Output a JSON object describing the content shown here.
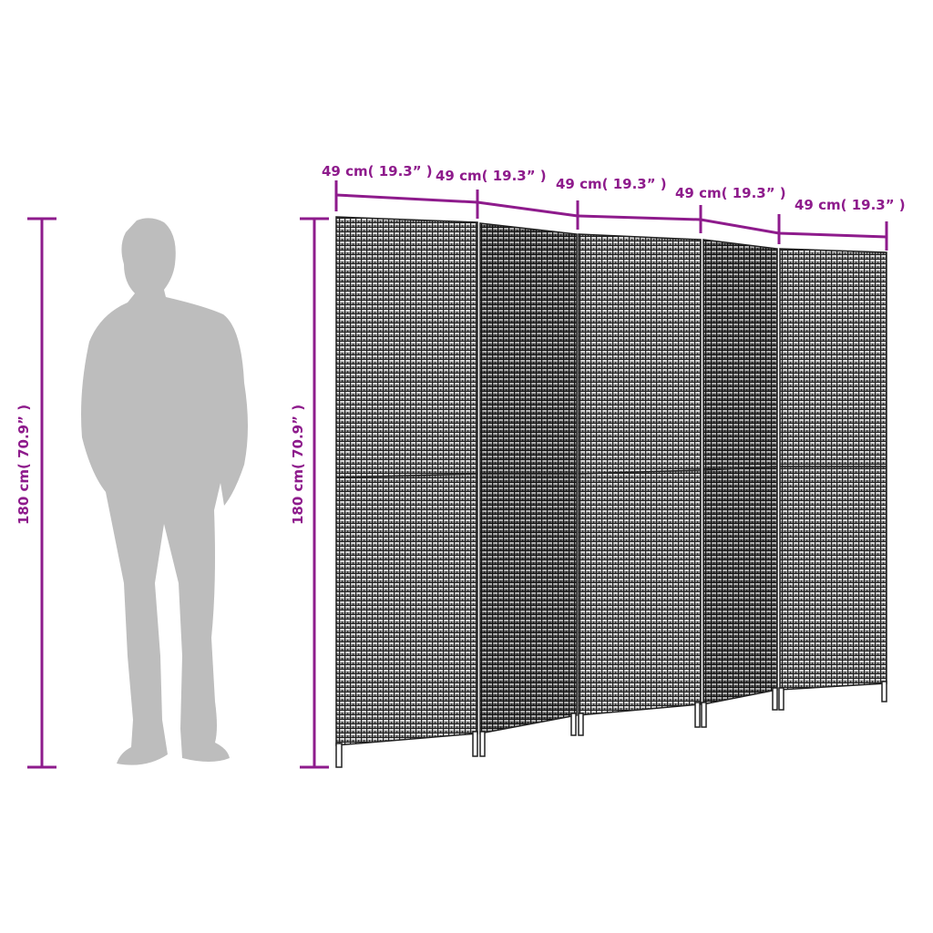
{
  "colors": {
    "dimension": "#8e1b8c",
    "silhouette": "#bdbdbd",
    "wicker_dark": "#2a2a2a",
    "wicker_light": "#9a9a9a"
  },
  "dimensions": {
    "panel_widths": [
      "49 cm( 19.3” )",
      "49 cm( 19.3” )",
      "49 cm( 19.3” )",
      "49 cm( 19.3” )",
      "49 cm( 19.3” )"
    ],
    "person_height": "180 cm( 70.9” )",
    "screen_height": "180 cm( 70.9” )"
  },
  "product": {
    "panel_count": 5
  }
}
